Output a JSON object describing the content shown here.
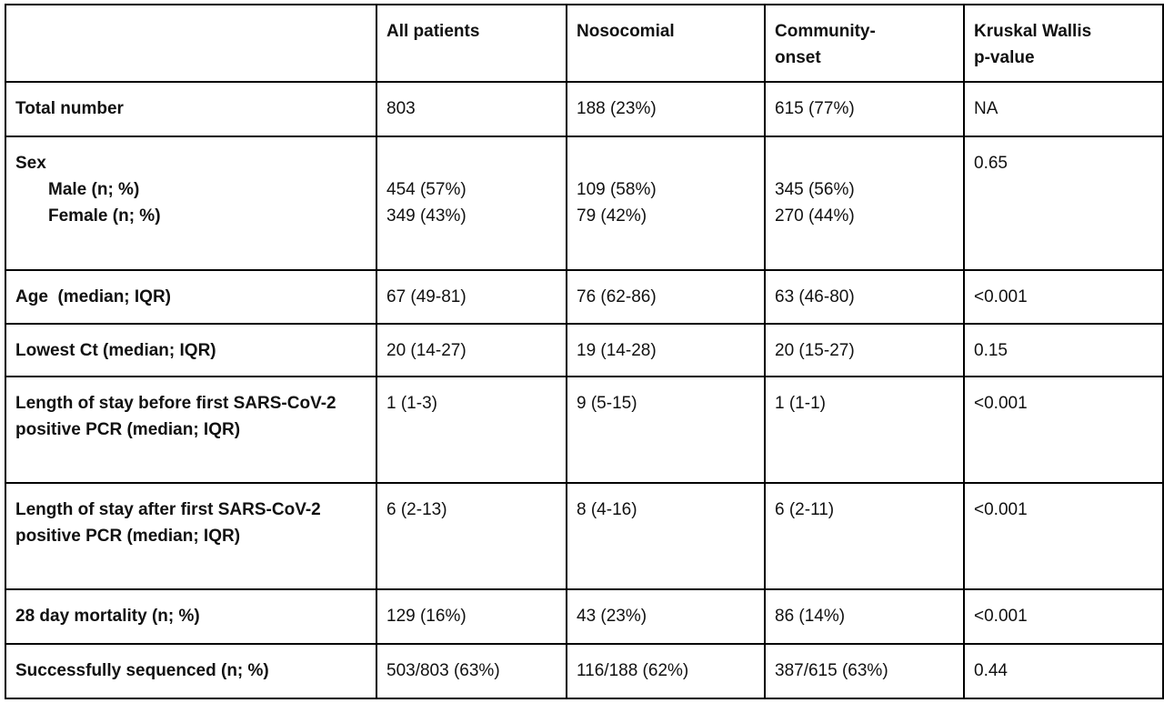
{
  "table": {
    "headers": [
      "",
      "All patients",
      "Nosocomial",
      "Community-\nonset",
      "Kruskal Wallis\np-value"
    ],
    "rows": [
      {
        "label": "Total number",
        "all": "803",
        "nosocomial": "188 (23%)",
        "community": "615 (77%)",
        "p": "NA"
      },
      {
        "label": "Sex",
        "sub_labels": [
          "Male (n; %)",
          "Female (n; %)"
        ],
        "all": [
          "454 (57%)",
          "349 (43%)"
        ],
        "nosocomial": [
          "109 (58%)",
          "79 (42%)"
        ],
        "community": [
          "345 (56%)",
          "270 (44%)"
        ],
        "p": "0.65"
      },
      {
        "label": "Age  (median; IQR)",
        "all": "67 (49-81)",
        "nosocomial": "76 (62-86)",
        "community": "63 (46-80)",
        "p": "<0.001"
      },
      {
        "label": "Lowest Ct (median; IQR)",
        "all": "20 (14-27)",
        "nosocomial": "19 (14-28)",
        "community": "20 (15-27)",
        "p": "0.15"
      },
      {
        "label": "Length of stay before first SARS-CoV-2 positive PCR (median; IQR)",
        "all": "1 (1-3)",
        "nosocomial": "9 (5-15)",
        "community": "1 (1-1)",
        "p": "<0.001"
      },
      {
        "label": "Length of stay after first SARS-CoV-2 positive PCR (median; IQR)",
        "all": "6 (2-13)",
        "nosocomial": "8 (4-16)",
        "community": "6 (2-11)",
        "p": "<0.001"
      },
      {
        "label": "28 day mortality (n; %)",
        "all": "129 (16%)",
        "nosocomial": "43 (23%)",
        "community": "86 (14%)",
        "p": "<0.001"
      },
      {
        "label": "Successfully sequenced (n; %)",
        "all": "503/803 (63%)",
        "nosocomial": "116/188 (62%)",
        "community": "387/615 (63%)",
        "p": "0.44"
      }
    ]
  }
}
